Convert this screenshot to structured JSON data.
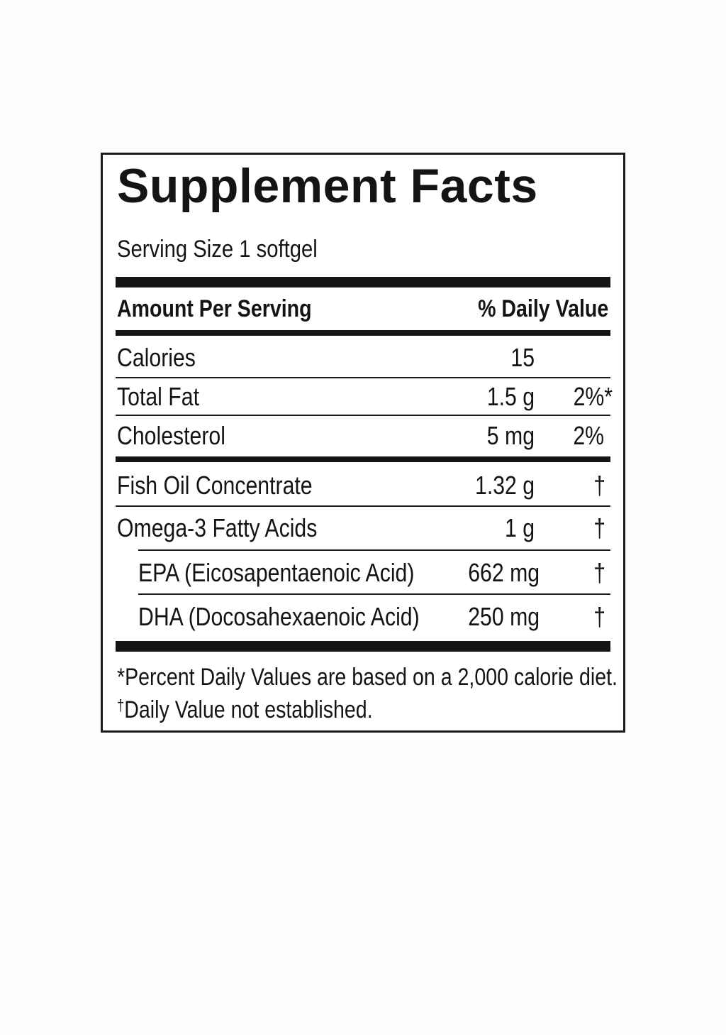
{
  "panel": {
    "title": "Supplement Facts",
    "serving_size": "Serving Size 1 softgel",
    "header_left": "Amount Per Serving",
    "header_right": "% Daily Value",
    "rows": [
      {
        "name": "Calories",
        "amount": "15",
        "dv": ""
      },
      {
        "name": "Total Fat",
        "amount": "1.5 g",
        "dv": "2%*"
      },
      {
        "name": "Cholesterol",
        "amount": "5 mg",
        "dv": "2%"
      },
      {
        "name": "Fish Oil Concentrate",
        "amount": "1.32 g",
        "dv": "†"
      },
      {
        "name": "Omega-3 Fatty Acids",
        "amount": "1 g",
        "dv": "†"
      },
      {
        "name": "EPA (Eicosapentaenoic Acid)",
        "amount": "662 mg",
        "dv": "†"
      },
      {
        "name": "DHA (Docosahexaenoic Acid)",
        "amount": "250 mg",
        "dv": "†"
      }
    ],
    "footnote_1": "*Percent Daily Values are based on a 2,000 calorie diet.",
    "footnote_2_symbol": "†",
    "footnote_2_text": "Daily Value not established."
  }
}
